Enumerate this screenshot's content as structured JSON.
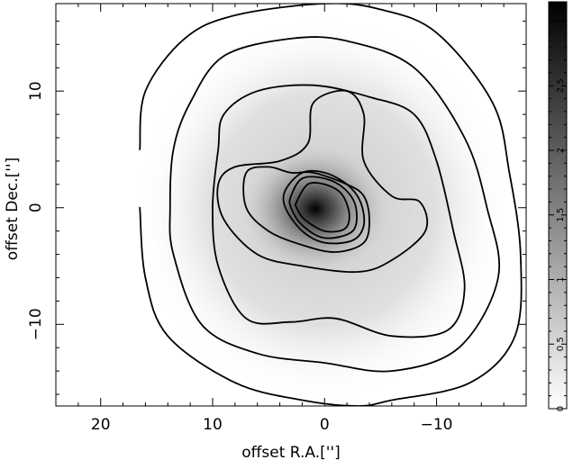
{
  "chart_data": {
    "type": "heatmap",
    "title": "",
    "xlabel": "offset R.A.['']",
    "ylabel": "offset Dec.['']",
    "xlim": [
      24,
      -18
    ],
    "ylim": [
      -17,
      17.5
    ],
    "xticks": [
      20,
      10,
      0,
      -10
    ],
    "xtick_labels": [
      "20",
      "10",
      "0",
      "−10"
    ],
    "yticks": [
      10,
      0,
      -10
    ],
    "ytick_labels": [
      "10",
      "0",
      "−10"
    ],
    "colorbar": {
      "min": 0,
      "max": 3.15,
      "ticks": [
        0,
        0.5,
        1,
        1.5,
        2,
        2.5,
        3
      ],
      "tick_labels": [
        "0",
        "0.5",
        "1",
        "1.5",
        "2",
        "2.5",
        "3"
      ],
      "colormap": "white-to-black grayscale"
    },
    "grid": false,
    "peak": {
      "x": 0,
      "y": 0,
      "value": 3.1
    },
    "contours": [
      {
        "level": 0.2,
        "points": [
          [
            16.5,
            5
          ],
          [
            16,
            10
          ],
          [
            12.5,
            14.5
          ],
          [
            8,
            16.5
          ],
          [
            0,
            17.5
          ],
          [
            -5,
            17
          ],
          [
            -10,
            15
          ],
          [
            -15,
            9
          ],
          [
            -16.5,
            3
          ],
          [
            -17.5,
            -4
          ],
          [
            -17,
            -11
          ],
          [
            -13,
            -15
          ],
          [
            -6,
            -16.5
          ],
          [
            -3,
            -17
          ],
          [
            2,
            -16.5
          ],
          [
            8,
            -15
          ],
          [
            14,
            -11
          ],
          [
            16,
            -6
          ],
          [
            16.5,
            0
          ]
        ],
        "closed": false
      },
      {
        "level": 0.35,
        "points": [
          [
            13.5,
            5
          ],
          [
            12,
            9
          ],
          [
            9,
            13
          ],
          [
            3,
            14.5
          ],
          [
            -2,
            14.3
          ],
          [
            -8,
            12
          ],
          [
            -12.5,
            6
          ],
          [
            -14.5,
            0
          ],
          [
            -15.5,
            -6
          ],
          [
            -12,
            -12
          ],
          [
            -6,
            -14
          ],
          [
            0,
            -13.3
          ],
          [
            6,
            -12.5
          ],
          [
            11,
            -10
          ],
          [
            13.5,
            -4
          ],
          [
            13.8,
            0
          ]
        ],
        "closed": true
      },
      {
        "level": 0.55,
        "points": [
          [
            9.5,
            5
          ],
          [
            9,
            8
          ],
          [
            6,
            10
          ],
          [
            1,
            10.5
          ],
          [
            -4,
            9.5
          ],
          [
            -8,
            8
          ],
          [
            -10,
            4
          ],
          [
            -11.5,
            -2
          ],
          [
            -12.5,
            -7
          ],
          [
            -11,
            -10.5
          ],
          [
            -6,
            -11
          ],
          [
            -1,
            -9.5
          ],
          [
            3,
            -9.8
          ],
          [
            7,
            -9.5
          ],
          [
            9.5,
            -5
          ],
          [
            10,
            0
          ]
        ],
        "closed": true
      },
      {
        "level": 0.85,
        "points": [
          [
            9.5,
            2
          ],
          [
            8,
            3.5
          ],
          [
            4,
            4
          ],
          [
            1.5,
            5.5
          ],
          [
            1,
            9
          ],
          [
            -2,
            10
          ],
          [
            -3.5,
            8
          ],
          [
            -3.5,
            4
          ],
          [
            -6,
            1
          ],
          [
            -8.5,
            0.5
          ],
          [
            -9,
            -2
          ],
          [
            -6,
            -4.5
          ],
          [
            -3,
            -5.5
          ],
          [
            2,
            -5
          ],
          [
            6,
            -4
          ],
          [
            9,
            -1
          ]
        ],
        "closed": true
      },
      {
        "level": 1.2,
        "points": [
          [
            7,
            3
          ],
          [
            5,
            3.5
          ],
          [
            3,
            3
          ],
          [
            1,
            3
          ],
          [
            -2,
            2
          ],
          [
            -3.5,
            1
          ],
          [
            -4,
            -1
          ],
          [
            -3.5,
            -3
          ],
          [
            -1,
            -3.8
          ],
          [
            2,
            -3.2
          ],
          [
            5,
            -2
          ],
          [
            7,
            0
          ]
        ],
        "closed": true
      },
      {
        "level": 1.6,
        "points": [
          [
            3.5,
            1.5
          ],
          [
            2,
            3
          ],
          [
            0,
            3
          ],
          [
            -2,
            2
          ],
          [
            -3.2,
            0.5
          ],
          [
            -3.5,
            -1.5
          ],
          [
            -2.5,
            -2.8
          ],
          [
            0,
            -3
          ],
          [
            2,
            -2
          ],
          [
            3.5,
            0
          ]
        ],
        "closed": true
      },
      {
        "level": 2.0,
        "points": [
          [
            3,
            1
          ],
          [
            2,
            2.5
          ],
          [
            0,
            2.5
          ],
          [
            -1.8,
            1.6
          ],
          [
            -2.8,
            0
          ],
          [
            -2.5,
            -2
          ],
          [
            0,
            -2.6
          ],
          [
            2,
            -1.5
          ],
          [
            3,
            0
          ]
        ],
        "closed": true
      },
      {
        "level": 2.4,
        "points": [
          [
            2.5,
            0.5
          ],
          [
            1.5,
            2
          ],
          [
            0,
            2
          ],
          [
            -1.5,
            1.2
          ],
          [
            -2.2,
            -0.5
          ],
          [
            -1.8,
            -1.8
          ],
          [
            0,
            -2
          ],
          [
            1.8,
            -1
          ],
          [
            2.5,
            0
          ]
        ],
        "closed": true
      }
    ]
  }
}
